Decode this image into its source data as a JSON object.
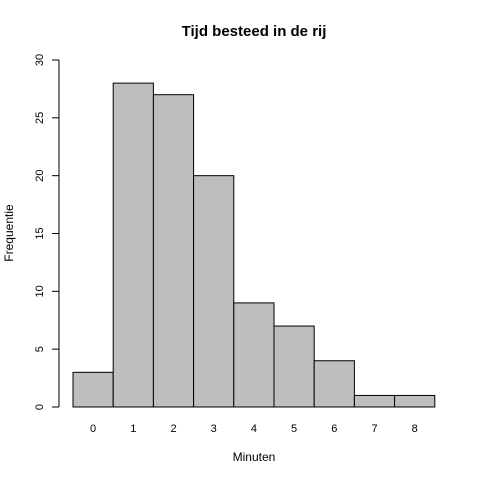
{
  "chart_data": {
    "type": "bar",
    "title": "Tijd besteed in de rij",
    "xlabel": "Minuten",
    "ylabel": "Frequentie",
    "categories": [
      "0",
      "1",
      "2",
      "3",
      "4",
      "5",
      "6",
      "7",
      "8"
    ],
    "values": [
      3,
      28,
      27,
      20,
      9,
      7,
      4,
      1,
      1
    ],
    "ylim": [
      0,
      30
    ],
    "yticks": [
      "0",
      "5",
      "10",
      "15",
      "20",
      "25",
      "30"
    ],
    "grid": false,
    "legend": "none",
    "bar_color": "#bebebe",
    "edge_color": "#000000"
  }
}
